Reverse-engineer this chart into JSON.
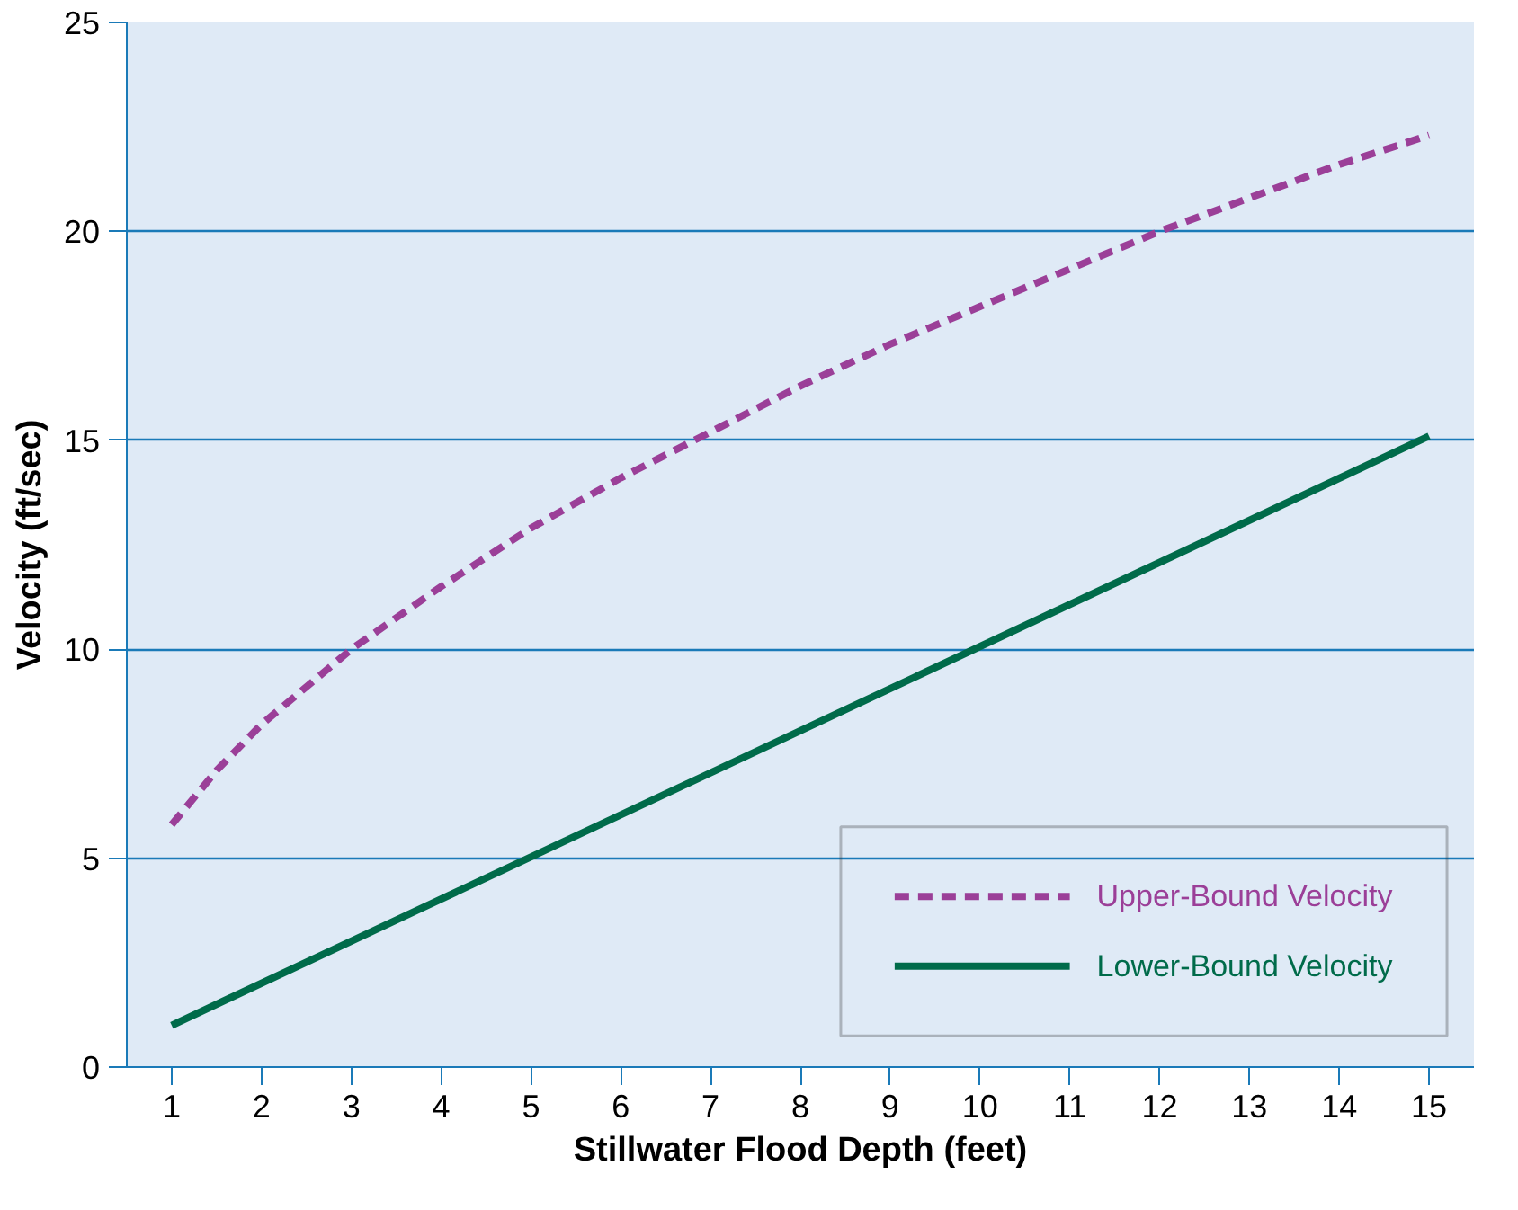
{
  "chart_data": {
    "type": "line",
    "xlabel": "Stillwater Flood Depth (feet)",
    "ylabel": "Velocity (ft/sec)",
    "xlim": [
      0.5,
      15.5
    ],
    "ylim": [
      0,
      25
    ],
    "xticks": [
      1,
      2,
      3,
      4,
      5,
      6,
      7,
      8,
      9,
      10,
      11,
      12,
      13,
      14,
      15
    ],
    "yticks": [
      0,
      5,
      10,
      15,
      20,
      25
    ],
    "grid": "y",
    "legend": "bottom right",
    "series": [
      {
        "name": "Upper-Bound Velocity",
        "color": "#9b3f98",
        "line_style": "dashed",
        "x": [
          1,
          1.5,
          2,
          2.5,
          3,
          4,
          5,
          6,
          7,
          8,
          9,
          10,
          11,
          12,
          13,
          14,
          15
        ],
        "values": [
          5.8,
          7.1,
          8.2,
          9.1,
          10.0,
          11.5,
          12.9,
          14.1,
          15.2,
          16.3,
          17.3,
          18.2,
          19.1,
          20.0,
          20.8,
          21.6,
          22.3
        ]
      },
      {
        "name": "Lower-Bound Velocity",
        "color": "#006b4a",
        "line_style": "solid",
        "x": [
          1,
          15
        ],
        "values": [
          1.0,
          15.1
        ]
      }
    ]
  }
}
